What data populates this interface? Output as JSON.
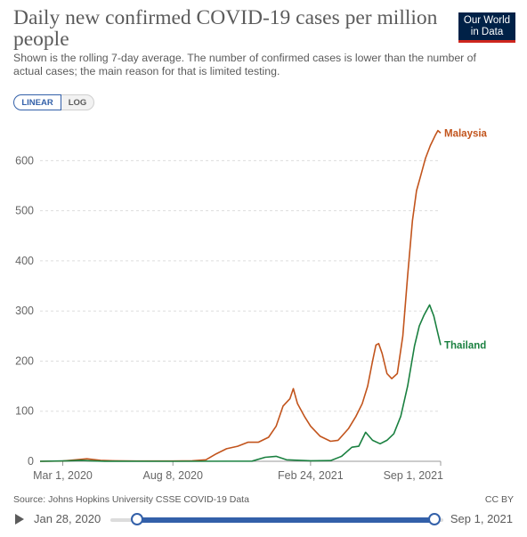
{
  "header": {
    "title": "Daily new confirmed COVID-19 cases per million people",
    "subtitle": "Shown is the rolling 7-day average. The number of confirmed cases is lower than the number of actual cases; the main reason for that is limited testing.",
    "logo_line1": "Our World",
    "logo_line2": "in Data"
  },
  "controls": {
    "linear_label": "LINEAR",
    "log_label": "LOG",
    "active_scale": "linear"
  },
  "footer": {
    "source": "Source: Johns Hopkins University CSSE COVID-19 Data",
    "license": "CC BY"
  },
  "timeline": {
    "start_date": "Jan 28, 2020",
    "end_date": "Sep 1, 2021"
  },
  "colors": {
    "malaysia": "#c2541c",
    "thailand": "#1a8040",
    "accent": "#3360a9",
    "text": "#5b5b5b"
  },
  "chart_data": {
    "type": "line",
    "xlabel": "",
    "ylabel": "",
    "ylim": [
      0,
      670
    ],
    "xlim": [
      "2020-01-28",
      "2021-09-01"
    ],
    "yticks": [
      0,
      100,
      200,
      300,
      400,
      500,
      600
    ],
    "ytick_labels": [
      "0",
      "100",
      "200",
      "300",
      "400",
      "500",
      "600"
    ],
    "xticks": [
      "2020-03-01",
      "2020-08-08",
      "2021-02-24",
      "2021-09-01"
    ],
    "xtick_labels": [
      "Mar 1, 2020",
      "Aug 8, 2020",
      "Feb 24, 2021",
      "Sep 1, 2021"
    ],
    "grid": "horizontal dashed",
    "legend": "end-of-line labels",
    "series": [
      {
        "name": "Malaysia",
        "color": "#c2541c",
        "points": [
          [
            "2020-01-28",
            0
          ],
          [
            "2020-03-01",
            0.5
          ],
          [
            "2020-03-20",
            3
          ],
          [
            "2020-04-05",
            5
          ],
          [
            "2020-04-25",
            2
          ],
          [
            "2020-05-15",
            1
          ],
          [
            "2020-06-15",
            0.5
          ],
          [
            "2020-08-08",
            0.5
          ],
          [
            "2020-09-05",
            1
          ],
          [
            "2020-09-25",
            3
          ],
          [
            "2020-10-10",
            15
          ],
          [
            "2020-10-25",
            25
          ],
          [
            "2020-11-10",
            30
          ],
          [
            "2020-11-25",
            38
          ],
          [
            "2020-12-10",
            38
          ],
          [
            "2020-12-25",
            48
          ],
          [
            "2021-01-05",
            70
          ],
          [
            "2021-01-15",
            110
          ],
          [
            "2021-01-25",
            125
          ],
          [
            "2021-01-30",
            145
          ],
          [
            "2021-02-05",
            115
          ],
          [
            "2021-02-15",
            90
          ],
          [
            "2021-02-24",
            70
          ],
          [
            "2021-03-10",
            50
          ],
          [
            "2021-03-25",
            40
          ],
          [
            "2021-04-05",
            42
          ],
          [
            "2021-04-20",
            65
          ],
          [
            "2021-05-01",
            90
          ],
          [
            "2021-05-10",
            115
          ],
          [
            "2021-05-18",
            150
          ],
          [
            "2021-05-25",
            200
          ],
          [
            "2021-05-30",
            232
          ],
          [
            "2021-06-03",
            235
          ],
          [
            "2021-06-08",
            215
          ],
          [
            "2021-06-15",
            175
          ],
          [
            "2021-06-22",
            165
          ],
          [
            "2021-06-30",
            175
          ],
          [
            "2021-07-08",
            250
          ],
          [
            "2021-07-15",
            370
          ],
          [
            "2021-07-22",
            480
          ],
          [
            "2021-07-28",
            540
          ],
          [
            "2021-08-03",
            570
          ],
          [
            "2021-08-10",
            605
          ],
          [
            "2021-08-17",
            630
          ],
          [
            "2021-08-24",
            650
          ],
          [
            "2021-08-28",
            660
          ],
          [
            "2021-09-01",
            655
          ]
        ]
      },
      {
        "name": "Thailand",
        "color": "#1a8040",
        "points": [
          [
            "2020-01-28",
            0
          ],
          [
            "2020-03-10",
            1
          ],
          [
            "2020-03-28",
            2
          ],
          [
            "2020-04-10",
            1
          ],
          [
            "2020-05-01",
            0.2
          ],
          [
            "2020-08-08",
            0
          ],
          [
            "2020-12-01",
            0.3
          ],
          [
            "2020-12-20",
            8
          ],
          [
            "2021-01-05",
            10
          ],
          [
            "2021-01-20",
            3
          ],
          [
            "2021-02-24",
            1
          ],
          [
            "2021-03-25",
            1.5
          ],
          [
            "2021-04-10",
            10
          ],
          [
            "2021-04-25",
            28
          ],
          [
            "2021-05-05",
            30
          ],
          [
            "2021-05-15",
            58
          ],
          [
            "2021-05-20",
            50
          ],
          [
            "2021-05-25",
            42
          ],
          [
            "2021-06-05",
            35
          ],
          [
            "2021-06-15",
            42
          ],
          [
            "2021-06-25",
            55
          ],
          [
            "2021-07-05",
            90
          ],
          [
            "2021-07-15",
            150
          ],
          [
            "2021-07-25",
            230
          ],
          [
            "2021-08-01",
            270
          ],
          [
            "2021-08-08",
            292
          ],
          [
            "2021-08-16",
            312
          ],
          [
            "2021-08-22",
            290
          ],
          [
            "2021-08-28",
            255
          ],
          [
            "2021-09-01",
            232
          ]
        ]
      }
    ]
  }
}
